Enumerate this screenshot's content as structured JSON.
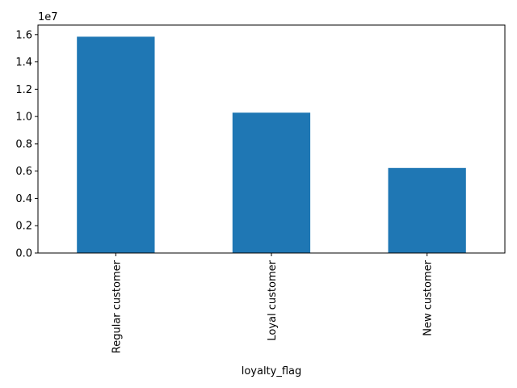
{
  "chart_data": {
    "type": "bar",
    "categories": [
      "Regular customer",
      "Loyal customer",
      "New customer"
    ],
    "values": [
      15850000,
      10280000,
      6230000
    ],
    "xlabel": "loyalty_flag",
    "ylabel": "",
    "ylim": [
      0,
      16700000
    ],
    "yticks": [
      0,
      2000000,
      4000000,
      6000000,
      8000000,
      10000000,
      12000000,
      14000000,
      16000000
    ],
    "ytick_labels": [
      "0.0",
      "0.2",
      "0.4",
      "0.6",
      "0.8",
      "1.0",
      "1.2",
      "1.4",
      "1.6"
    ],
    "y_offset_label": "1e7",
    "bar_color": "#1f77b4",
    "grid": false,
    "legend": "none"
  }
}
